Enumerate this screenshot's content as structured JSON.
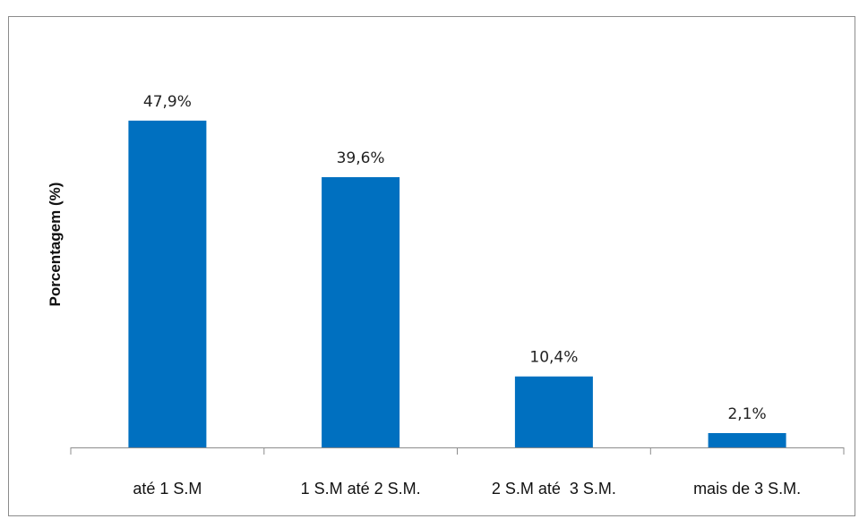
{
  "chart_data": {
    "type": "bar",
    "title": "",
    "xlabel": "",
    "ylabel": "Porcentagem (%)",
    "categories": [
      "até 1 S.M",
      "1 S.M até 2 S.M.",
      "2 S.M até  3 S.M.",
      "mais de 3 S.M."
    ],
    "values": [
      47.9,
      39.6,
      10.4,
      2.1
    ],
    "data_labels": [
      "47,9%",
      "39,6%",
      "10,4%",
      "2,1%"
    ],
    "ylim": [
      0,
      48
    ],
    "grid": false,
    "legend": "none",
    "bar_color": "#0070C0",
    "axis_color": "#8c8c8c"
  }
}
